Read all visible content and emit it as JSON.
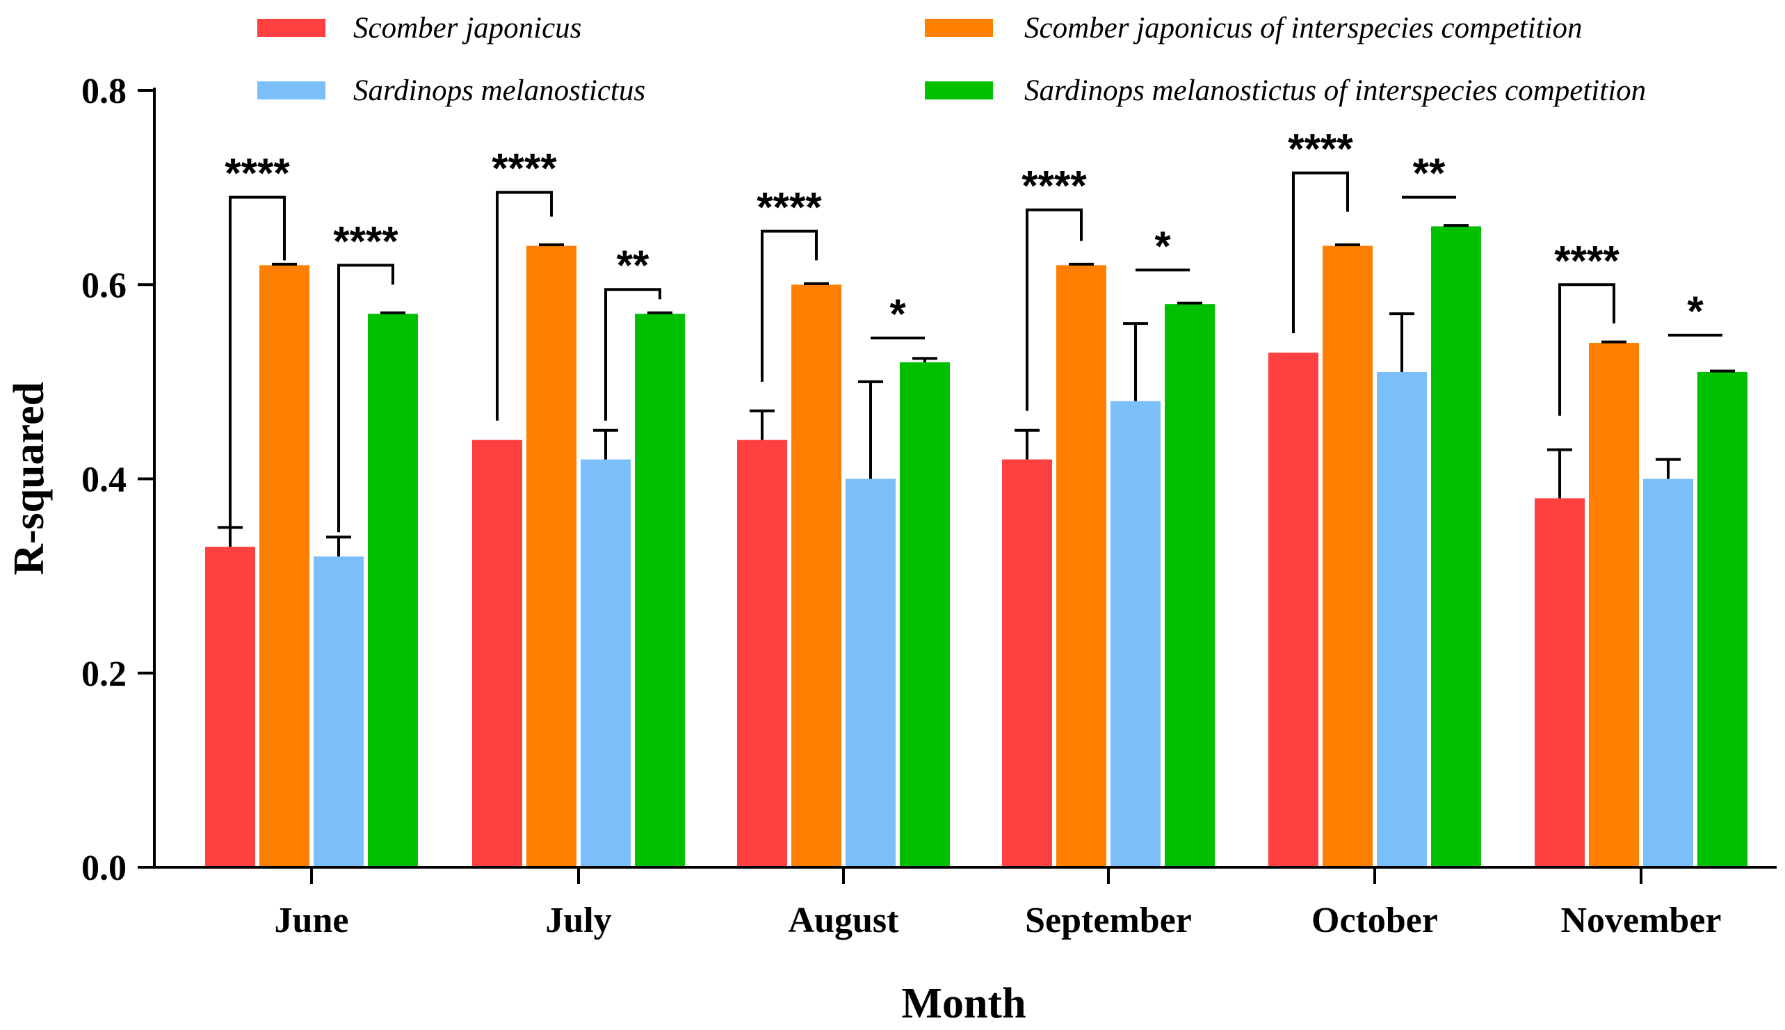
{
  "chart_data": {
    "type": "bar",
    "title": "",
    "xlabel": "Month",
    "ylabel": "R-squared",
    "ylim": [
      0,
      0.8
    ],
    "yticks": [
      "0.0",
      "0.2",
      "0.4",
      "0.6",
      "0.8"
    ],
    "ytick_values": [
      0,
      0.2,
      0.4,
      0.6,
      0.8
    ],
    "grid": false,
    "legend_position": "top",
    "categories": [
      "June",
      "July",
      "August",
      "September",
      "October",
      "November"
    ],
    "series": [
      {
        "name": "Scomber japonicus",
        "color": "#FF4040",
        "values": [
          0.33,
          0.44,
          0.44,
          0.42,
          0.53,
          0.38
        ],
        "errors": [
          0.02,
          0,
          0.03,
          0.03,
          0,
          0.05
        ]
      },
      {
        "name": "Scomber japonicus of interspecies competition",
        "color": "#FF8000",
        "values": [
          0.62,
          0.64,
          0.6,
          0.62,
          0.64,
          0.54
        ],
        "errors": [
          0.001,
          0.001,
          0.001,
          0.001,
          0.001,
          0.001
        ]
      },
      {
        "name": "Sardinops melanostictus",
        "color": "#7BBFFA",
        "values": [
          0.32,
          0.42,
          0.4,
          0.48,
          0.51,
          0.4
        ],
        "errors": [
          0.02,
          0.03,
          0.1,
          0.08,
          0.06,
          0.02
        ]
      },
      {
        "name": "Sardinops melanostictus of interspecies competition",
        "color": "#00C000",
        "values": [
          0.57,
          0.57,
          0.52,
          0.58,
          0.66,
          0.51
        ],
        "errors": [
          0.001,
          0.001,
          0.004,
          0.001,
          0.001,
          0.001
        ]
      }
    ],
    "significance": [
      {
        "month": 0,
        "from": 0,
        "to": 1,
        "label": "****",
        "style": "bracket",
        "y": 0.69,
        "left_start": 0.345,
        "right_start": 0.625
      },
      {
        "month": 0,
        "from": 2,
        "to": 3,
        "label": "****",
        "style": "bracket",
        "y": 0.62,
        "left_start": 0.345,
        "right_start": 0.6
      },
      {
        "month": 1,
        "from": 0,
        "to": 1,
        "label": "****",
        "style": "bracket",
        "y": 0.695,
        "left_start": 0.46,
        "right_start": 0.67
      },
      {
        "month": 1,
        "from": 2,
        "to": 3,
        "label": "**",
        "style": "bracket",
        "y": 0.595,
        "left_start": 0.46,
        "right_start": 0.585
      },
      {
        "month": 2,
        "from": 0,
        "to": 1,
        "label": "****",
        "style": "bracket",
        "y": 0.655,
        "left_start": 0.5,
        "right_start": 0.625
      },
      {
        "month": 2,
        "from": 2,
        "to": 3,
        "label": "*",
        "style": "line",
        "y": 0.545
      },
      {
        "month": 3,
        "from": 0,
        "to": 1,
        "label": "****",
        "style": "bracket",
        "y": 0.677,
        "left_start": 0.47,
        "right_start": 0.645
      },
      {
        "month": 3,
        "from": 2,
        "to": 3,
        "label": "*",
        "style": "line",
        "y": 0.615
      },
      {
        "month": 4,
        "from": 0,
        "to": 1,
        "label": "****",
        "style": "bracket",
        "y": 0.715,
        "left_start": 0.55,
        "right_start": 0.675
      },
      {
        "month": 4,
        "from": 2,
        "to": 3,
        "label": "**",
        "style": "line",
        "y": 0.69
      },
      {
        "month": 5,
        "from": 0,
        "to": 1,
        "label": "****",
        "style": "bracket",
        "y": 0.6,
        "left_start": 0.465,
        "right_start": 0.56
      },
      {
        "month": 5,
        "from": 2,
        "to": 3,
        "label": "*",
        "style": "line",
        "y": 0.548
      }
    ]
  }
}
